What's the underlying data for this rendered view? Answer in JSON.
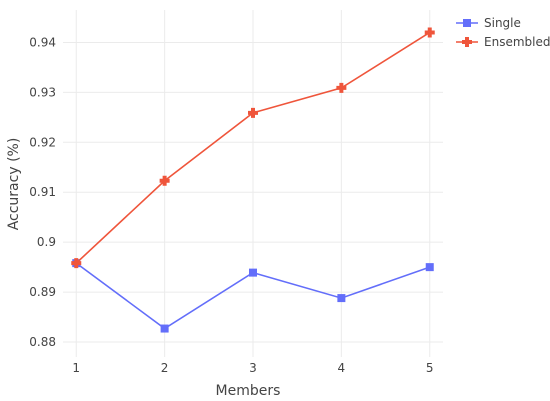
{
  "chart_data": {
    "type": "line",
    "title": "",
    "xlabel": "Members",
    "ylabel": "Accuracy (%)",
    "x": [
      1,
      2,
      3,
      4,
      5
    ],
    "xlim": [
      0.85,
      5.15
    ],
    "ylim": [
      0.877,
      0.9465
    ],
    "yticks": [
      0.88,
      0.89,
      0.9,
      0.91,
      0.92,
      0.93,
      0.94
    ],
    "ytick_labels": [
      "0.88",
      "0.89",
      "0.9",
      "0.91",
      "0.92",
      "0.93",
      "0.94"
    ],
    "xtick_labels": [
      "1",
      "2",
      "3",
      "4",
      "5"
    ],
    "grid": true,
    "legend_position": "top-right, outside plot",
    "series": [
      {
        "name": "Single",
        "values": [
          0.8958,
          0.8827,
          0.8939,
          0.8888,
          0.895
        ],
        "color": "#636efa",
        "marker": "square"
      },
      {
        "name": "Ensembled",
        "values": [
          0.8958,
          0.9123,
          0.9259,
          0.9309,
          0.942
        ],
        "color": "#ef553b",
        "marker": "cross"
      }
    ]
  }
}
